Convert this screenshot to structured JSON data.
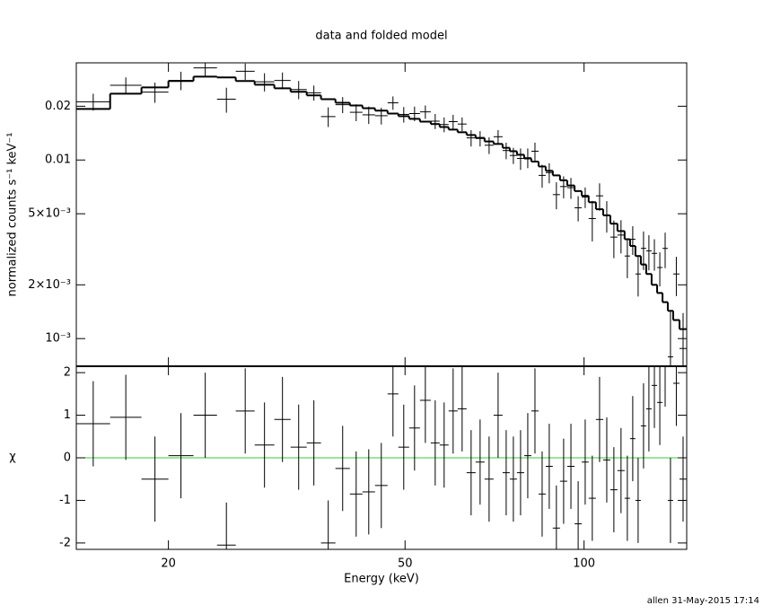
{
  "chart_data": [
    {
      "type": "step",
      "title": "data and folded model",
      "ylabel": "normalized counts s⁻¹ keV⁻¹",
      "yscale": "log",
      "ylim": [
        0.0007,
        0.035
      ],
      "yticks": [
        0.02,
        0.01,
        {
          "value": 0.005,
          "label": "5×10⁻³"
        },
        {
          "value": 0.002,
          "label": "2×10⁻³"
        },
        {
          "value": 0.001,
          "label": "10⁻³"
        }
      ],
      "bins": [
        14.0,
        15.96,
        18.02,
        20.0,
        22.04,
        24.14,
        25.96,
        27.93,
        30.14,
        32.1,
        34.17,
        36.11,
        38.19,
        40.38,
        42.4,
        44.51,
        46.73,
        48.72,
        50.8,
        52.97,
        55.23,
        57.17,
        59.19,
        61.29,
        63.46,
        65.71,
        68.04,
        70.45,
        72.95,
        75.0,
        77.12,
        79.3,
        81.54,
        83.85,
        86.2,
        88.6,
        91.1,
        93.7,
        96.4,
        99.1,
        101.8,
        104.7,
        107.7,
        110.7,
        113.8,
        117.0,
        119.5,
        122.0,
        124.6,
        127.2,
        129.9,
        132.7,
        135.5,
        138.3,
        141.2,
        144.7,
        148.8
      ],
      "data": [
        0.0212,
        0.0262,
        0.024,
        0.0279,
        0.0328,
        0.0219,
        0.0314,
        0.0274,
        0.0279,
        0.0248,
        0.0238,
        0.0175,
        0.0204,
        0.0185,
        0.0179,
        0.0177,
        0.0209,
        0.018,
        0.0182,
        0.0186,
        0.0165,
        0.0158,
        0.0164,
        0.0159,
        0.0133,
        0.0132,
        0.0121,
        0.0135,
        0.0113,
        0.0106,
        0.0102,
        0.0103,
        0.0112,
        0.0082,
        0.0085,
        0.0064,
        0.0071,
        0.007,
        0.0054,
        0.0062,
        0.0047,
        0.0063,
        0.0049,
        0.0037,
        0.0038,
        0.0029,
        0.0036,
        0.0023,
        0.0032,
        0.0031,
        0.003,
        0.0025,
        0.0032,
        0.00079,
        0.0023,
        0.00088
      ],
      "errors": [
        0.0023,
        0.0028,
        0.0031,
        0.0033,
        0.0035,
        0.0035,
        0.0033,
        0.0032,
        0.003,
        0.0029,
        0.0023,
        0.0022,
        0.0021,
        0.002,
        0.002,
        0.0019,
        0.0018,
        0.0018,
        0.0017,
        0.0016,
        0.0016,
        0.0015,
        0.0015,
        0.0014,
        0.0014,
        0.0013,
        0.0013,
        0.0012,
        0.0012,
        0.0011,
        0.0014,
        0.0013,
        0.0013,
        0.0012,
        0.0011,
        0.0011,
        0.001,
        0.00094,
        0.00087,
        0.00082,
        0.0012,
        0.0011,
        0.00098,
        0.00088,
        0.0008,
        0.00072,
        0.00066,
        0.00058,
        0.00078,
        0.00069,
        0.0006,
        0.00054,
        0.00072,
        0.00064,
        0.00057,
        0.00051
      ],
      "model": [
        0.0193,
        0.0235,
        0.0255,
        0.0277,
        0.0293,
        0.029,
        0.0277,
        0.0264,
        0.0252,
        0.0241,
        0.023,
        0.0219,
        0.0209,
        0.0202,
        0.0195,
        0.0189,
        0.0182,
        0.0176,
        0.017,
        0.0164,
        0.0159,
        0.0153,
        0.0148,
        0.0143,
        0.0138,
        0.0133,
        0.0127,
        0.0123,
        0.0117,
        0.0112,
        0.0107,
        0.0102,
        0.0098,
        0.0092,
        0.0087,
        0.0082,
        0.0077,
        0.0072,
        0.0067,
        0.0063,
        0.0058,
        0.0053,
        0.0049,
        0.0044,
        0.004,
        0.0036,
        0.0033,
        0.0029,
        0.0026,
        0.0023,
        0.002,
        0.0018,
        0.0016,
        0.00143,
        0.00127,
        0.00113
      ],
      "color": "#000000"
    },
    {
      "type": "residual",
      "xlabel": "Energy (keV)",
      "ylabel": "χ",
      "xscale": "log",
      "xlim": [
        14.0,
        148.8
      ],
      "xticks": [
        20,
        50,
        100
      ],
      "ylim": [
        -2.15,
        2.15
      ],
      "yticks": [
        2,
        1,
        0,
        -1,
        -2
      ],
      "values": [
        0.8,
        0.95,
        -0.5,
        0.05,
        1.0,
        -2.05,
        1.1,
        0.3,
        0.9,
        0.25,
        0.35,
        -2.0,
        -0.25,
        -0.85,
        -0.8,
        -0.65,
        1.5,
        0.25,
        0.7,
        1.35,
        0.35,
        0.3,
        1.1,
        1.15,
        -0.35,
        -0.1,
        -0.5,
        1.0,
        -0.35,
        -0.5,
        -0.35,
        0.05,
        1.1,
        -0.85,
        -0.2,
        -1.65,
        -0.55,
        -0.2,
        -1.55,
        -0.1,
        -0.95,
        0.9,
        -0.05,
        -0.75,
        -0.3,
        -0.95,
        0.45,
        -1.0,
        0.75,
        1.15,
        1.7,
        1.3,
        2.2,
        -1.0,
        1.75,
        -0.5
      ],
      "error": 1,
      "reference_line": {
        "value": 0,
        "color": "#33cc33"
      },
      "color": "#000000"
    }
  ],
  "footer": "allen 31-May-2015 17:14"
}
